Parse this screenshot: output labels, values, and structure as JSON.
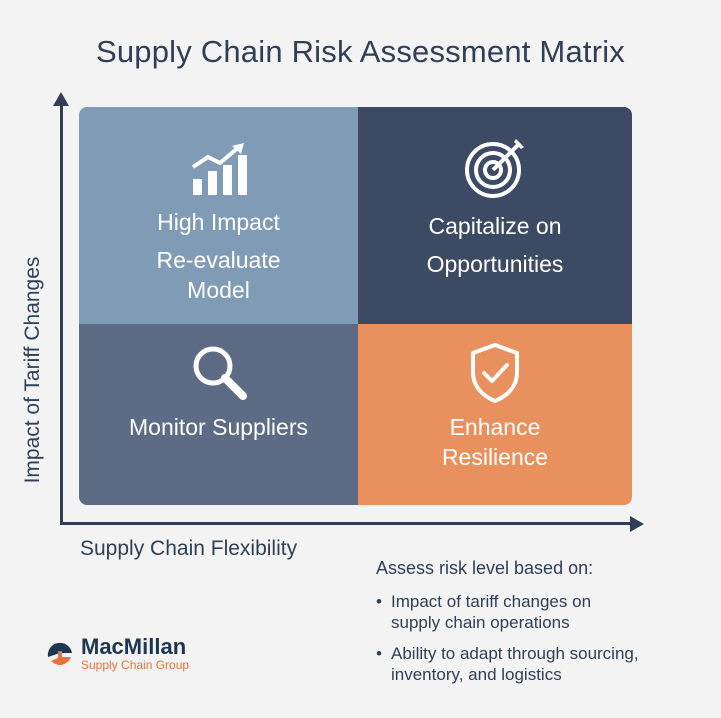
{
  "title": "Supply Chain Risk Assessment Matrix",
  "axes": {
    "y_label": "Impact of Tariff Changes",
    "x_label": "Supply Chain Flexibility"
  },
  "quadrants": {
    "top_left": {
      "icon": "growth-chart-icon",
      "title": "High Impact",
      "subtitle": "Re-evaluate Model",
      "color": "#7f9bb6"
    },
    "top_right": {
      "icon": "target-icon",
      "title": "Capitalize on Opportunities",
      "color": "#3d4a63"
    },
    "bottom_left": {
      "icon": "magnifier-icon",
      "title": "Monitor Suppliers",
      "color": "#5d6b85"
    },
    "bottom_right": {
      "icon": "shield-check-icon",
      "title": "Enhance Resilience",
      "color": "#e9905f"
    }
  },
  "notes": {
    "heading": "Assess risk level based on:",
    "items": [
      "Impact of tariff changes on supply chain operations",
      "Ability to adapt through sourcing, inventory, and logistics"
    ]
  },
  "brand": {
    "name": "MacMillan",
    "tagline": "Supply Chain Group",
    "colors": {
      "navy": "#1f3650",
      "orange": "#e2733a"
    }
  }
}
